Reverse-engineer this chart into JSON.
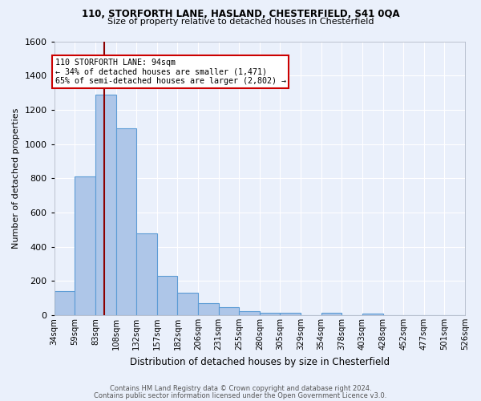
{
  "title1": "110, STORFORTH LANE, HASLAND, CHESTERFIELD, S41 0QA",
  "title2": "Size of property relative to detached houses in Chesterfield",
  "xlabel": "Distribution of detached houses by size in Chesterfield",
  "ylabel": "Number of detached properties",
  "bar_heights": [
    140,
    810,
    1290,
    1090,
    480,
    230,
    130,
    70,
    45,
    25,
    15,
    12,
    0,
    12,
    0,
    10,
    0,
    0,
    0,
    0
  ],
  "bin_labels": [
    "34sqm",
    "59sqm",
    "83sqm",
    "108sqm",
    "132sqm",
    "157sqm",
    "182sqm",
    "206sqm",
    "231sqm",
    "255sqm",
    "280sqm",
    "305sqm",
    "329sqm",
    "354sqm",
    "378sqm",
    "403sqm",
    "428sqm",
    "452sqm",
    "477sqm",
    "501sqm",
    "526sqm"
  ],
  "bar_color": "#aec6e8",
  "bar_edge_color": "#5b9bd5",
  "bg_color": "#eaf0fb",
  "grid_color": "#ffffff",
  "vline_bar_index": 2.55,
  "vline_color": "#8b0000",
  "annotation_text": "110 STORFORTH LANE: 94sqm\n← 34% of detached houses are smaller (1,471)\n65% of semi-detached houses are larger (2,802) →",
  "annotation_box_color": "#ffffff",
  "annotation_box_edge_color": "#cc0000",
  "ylim": [
    0,
    1600
  ],
  "yticks": [
    0,
    200,
    400,
    600,
    800,
    1000,
    1200,
    1400,
    1600
  ],
  "footer1": "Contains HM Land Registry data © Crown copyright and database right 2024.",
  "footer2": "Contains public sector information licensed under the Open Government Licence v3.0."
}
